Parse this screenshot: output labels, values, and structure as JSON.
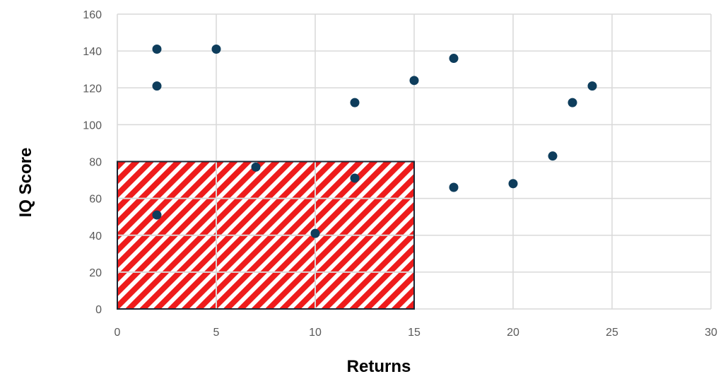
{
  "chart_data": {
    "type": "scatter",
    "title": "",
    "xlabel": "Returns",
    "ylabel": "IQ Score",
    "xlim": [
      0,
      30
    ],
    "ylim": [
      0,
      160
    ],
    "x_ticks": [
      0,
      5,
      10,
      15,
      20,
      25,
      30
    ],
    "y_ticks": [
      0,
      20,
      40,
      60,
      80,
      100,
      120,
      140,
      160
    ],
    "grid": true,
    "legend": "none",
    "points": [
      {
        "x": 2,
        "y": 141
      },
      {
        "x": 5,
        "y": 141
      },
      {
        "x": 2,
        "y": 121
      },
      {
        "x": 2,
        "y": 51
      },
      {
        "x": 7,
        "y": 77
      },
      {
        "x": 10,
        "y": 41
      },
      {
        "x": 12,
        "y": 112
      },
      {
        "x": 12,
        "y": 71
      },
      {
        "x": 15,
        "y": 124
      },
      {
        "x": 17,
        "y": 136
      },
      {
        "x": 17,
        "y": 66
      },
      {
        "x": 20,
        "y": 68
      },
      {
        "x": 22,
        "y": 83
      },
      {
        "x": 23,
        "y": 112
      },
      {
        "x": 24,
        "y": 121
      }
    ],
    "highlight_region": {
      "x": [
        0,
        15
      ],
      "y": [
        0,
        80
      ]
    },
    "colors": {
      "point": "#0e3d5c",
      "grid": "#d9d9d9",
      "hatch_red": "#ee1c1c",
      "region_border": "#1a2533"
    }
  }
}
